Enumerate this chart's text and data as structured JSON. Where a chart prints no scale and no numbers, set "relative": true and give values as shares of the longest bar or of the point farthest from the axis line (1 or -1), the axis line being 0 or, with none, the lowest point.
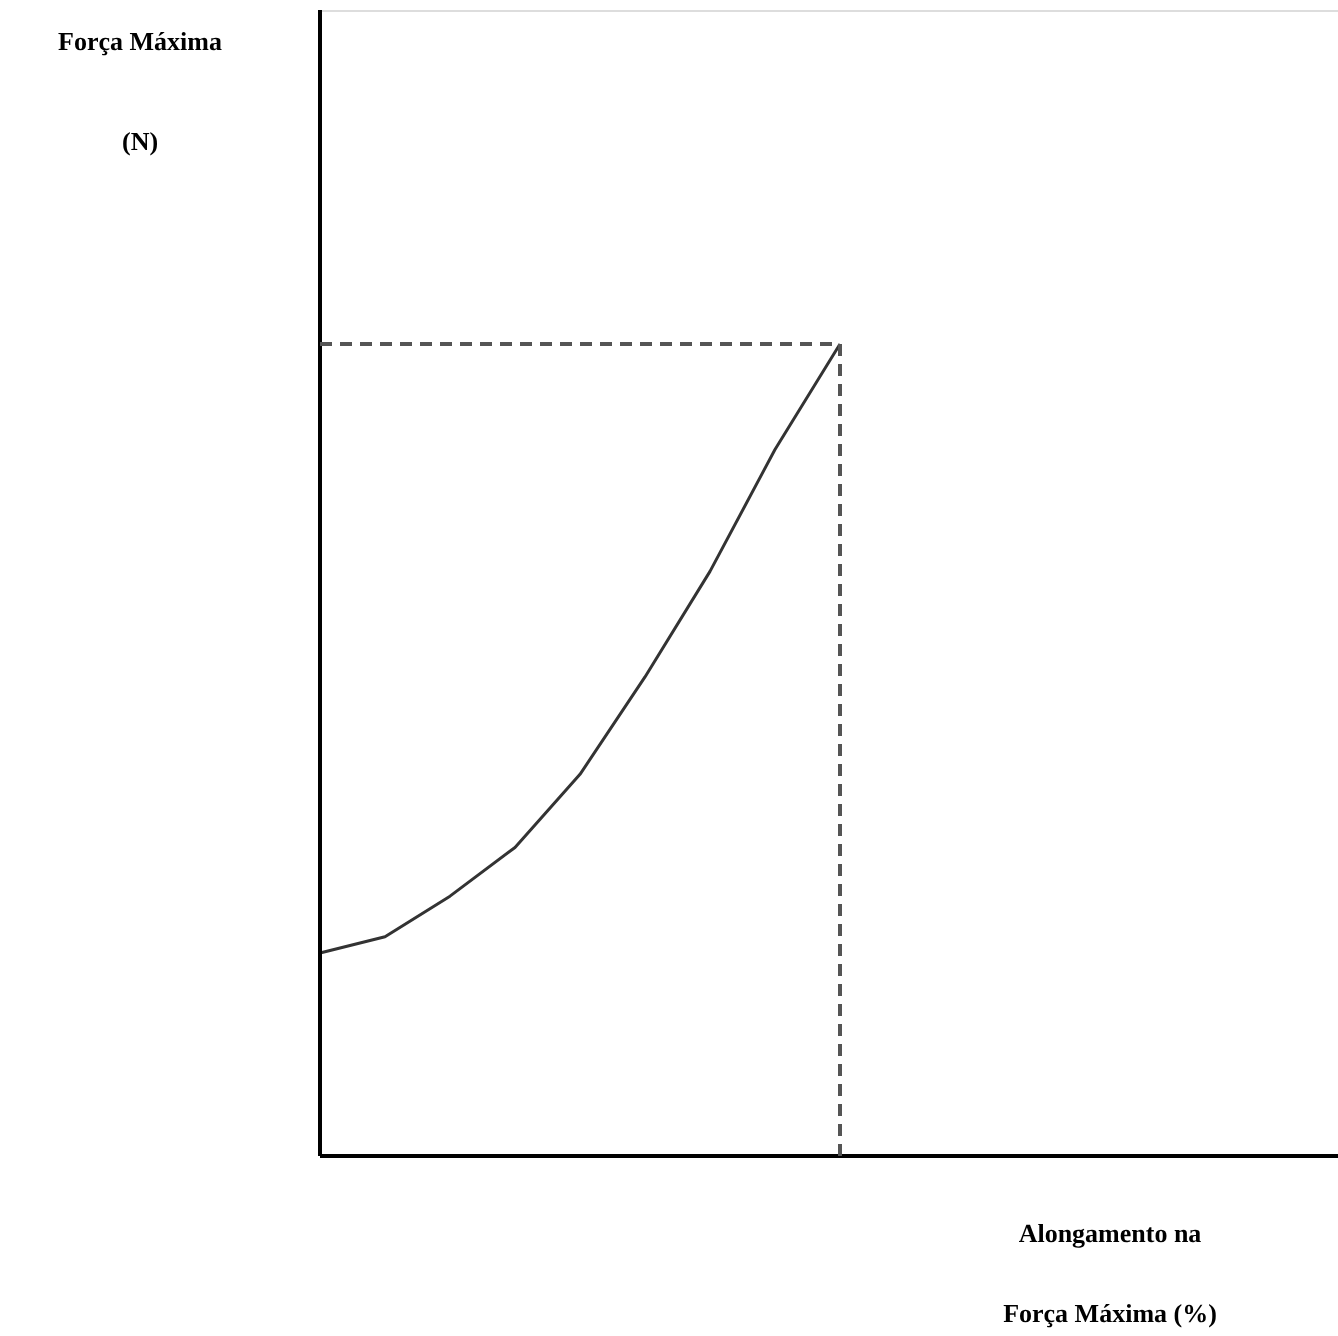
{
  "chart_data": {
    "type": "line",
    "relative": true,
    "xlabel": "Alongamento na\nForça Máxima (%)",
    "ylabel": "Força Máxima\n(N)",
    "categories": [
      null,
      null,
      null,
      null,
      null,
      null,
      null,
      null,
      null,
      null,
      null,
      null,
      null,
      null,
      null,
      null
    ],
    "series": [
      {
        "color": "#333333",
        "values": [
          0.25,
          0.27,
          0.32,
          0.38,
          0.47,
          0.59,
          0.72,
          0.87,
          1.0,
          null,
          null,
          null,
          null,
          null,
          null,
          null
        ]
      }
    ],
    "ref_lines": [
      {
        "axis": "y",
        "value": 1.0,
        "color": "#555555",
        "line_style": "dashed"
      }
    ],
    "marker": "none",
    "line_style": "solid"
  }
}
